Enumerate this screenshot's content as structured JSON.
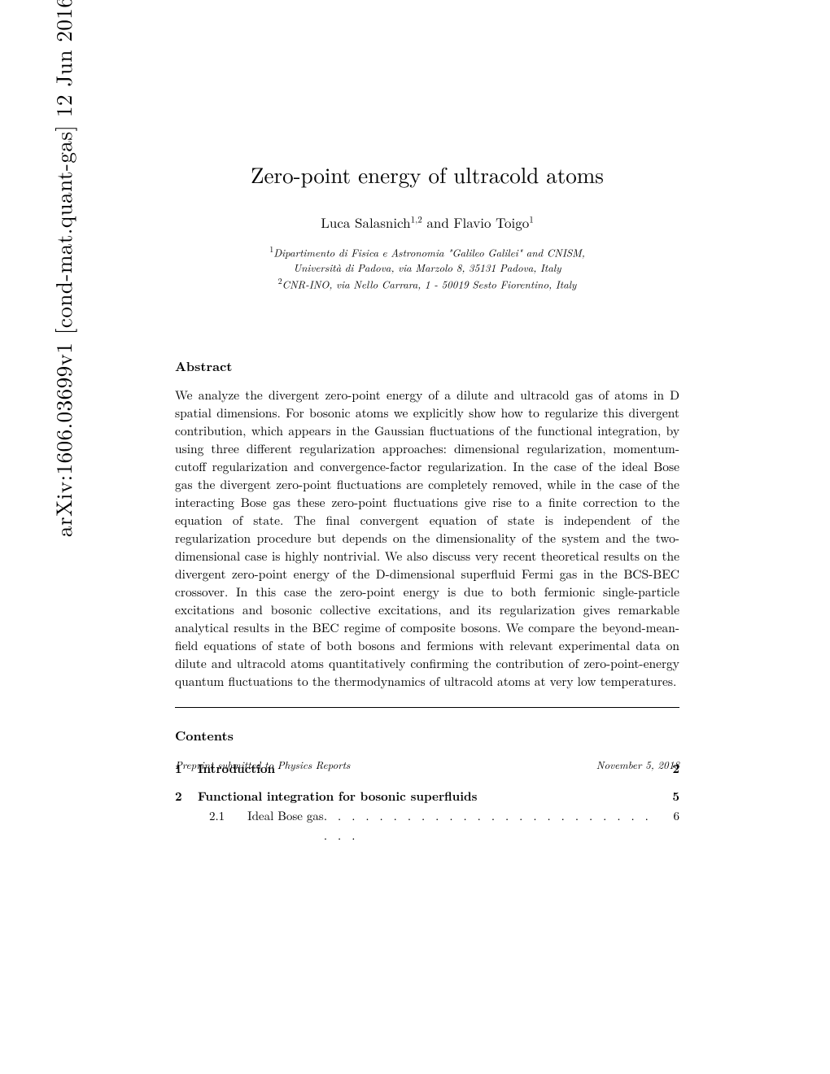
{
  "arxiv": {
    "identifier": "arXiv:1606.03699v1  [cond-mat.quant-gas]  12 Jun 2016"
  },
  "paper": {
    "title": "Zero-point energy of ultracold atoms",
    "authors_prefix": "Luca Salasnich",
    "authors_sup1": "1,2",
    "authors_mid": " and Flavio Toigo",
    "authors_sup2": "1",
    "affiliation1": "Dipartimento di Fisica e Astronomia \"Galileo Galilei\" and CNISM,",
    "affiliation1b": "Università di Padova, via Marzolo 8, 35131 Padova, Italy",
    "affiliation2": "CNR-INO, via Nello Carrara, 1 - 50019 Sesto Fiorentino, Italy",
    "abstract_heading": "Abstract",
    "abstract_text": "We analyze the divergent zero-point energy of a dilute and ultracold gas of atoms in D spatial dimensions. For bosonic atoms we explicitly show how to regularize this divergent contribution, which appears in the Gaussian fluctuations of the functional integration, by using three different regularization approaches: dimensional regularization, momentum-cutoff regularization and convergence-factor regularization. In the case of the ideal Bose gas the divergent zero-point fluctuations are completely removed, while in the case of the interacting Bose gas these zero-point fluctuations give rise to a finite correction to the equation of state. The final convergent equation of state is independent of the regularization procedure but depends on the dimensionality of the system and the two-dimensional case is highly nontrivial. We also discuss very recent theoretical results on the divergent zero-point energy of the D-dimensional superfluid Fermi gas in the BCS-BEC crossover. In this case the zero-point energy is due to both fermionic single-particle excitations and bosonic collective excitations, and its regularization gives remarkable analytical results in the BEC regime of composite bosons. We compare the beyond-mean-field equations of state of both bosons and fermions with relevant experimental data on dilute and ultracold atoms quantitatively confirming the contribution of zero-point-energy quantum fluctuations to the thermodynamics of ultracold atoms at very low temperatures.",
    "contents_heading": "Contents",
    "toc": [
      {
        "num": "1",
        "title": "Introduction",
        "page": "2",
        "section": true
      },
      {
        "num": "2",
        "title": "Functional integration for bosonic superfluids",
        "page": "5",
        "section": true
      },
      {
        "num": "2.1",
        "title": "Ideal Bose gas",
        "page": "6",
        "section": false
      }
    ],
    "footer_left": "Preprint submitted to Physics Reports",
    "footer_right": "November 5, 2018"
  }
}
